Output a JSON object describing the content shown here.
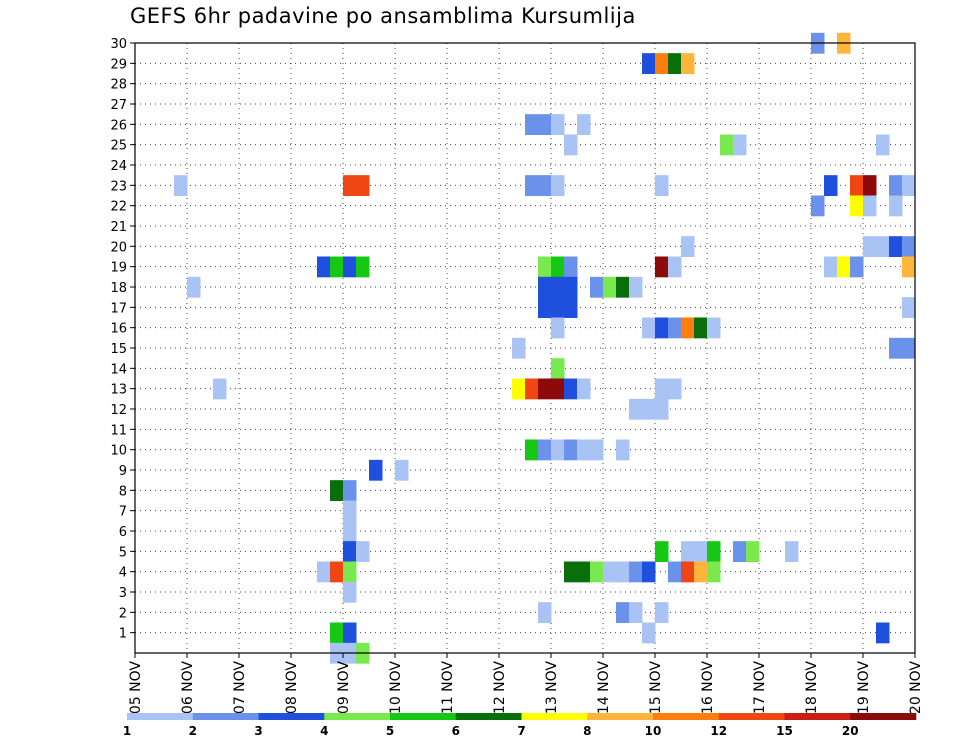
{
  "chart_data": {
    "type": "heatmap",
    "title": "GEFS 6hr padavine po ansamblima Kursumlija",
    "x_tick_labels": [
      "05 NOV",
      "06 NOV",
      "07 NOV",
      "08 NOV",
      "09 NOV",
      "10 NOV",
      "11 NOV",
      "12 NOV",
      "13 NOV",
      "14 NOV",
      "15 NOV",
      "16 NOV",
      "17 NOV",
      "18 NOV",
      "19 NOV",
      "20 NOV"
    ],
    "y_tick_labels": [
      "1",
      "2",
      "3",
      "4",
      "5",
      "6",
      "7",
      "8",
      "9",
      "10",
      "11",
      "12",
      "13",
      "14",
      "15",
      "16",
      "17",
      "18",
      "19",
      "20",
      "21",
      "22",
      "23",
      "24",
      "25",
      "26",
      "27",
      "28",
      "29",
      "30"
    ],
    "x_range_days": [
      0,
      15
    ],
    "y_range": [
      0,
      30
    ],
    "grid": true,
    "step_hours": 6,
    "colorbar": {
      "labels": [
        "1",
        "2",
        "3",
        "4",
        "5",
        "6",
        "7",
        "8",
        "10",
        "12",
        "15",
        "20"
      ],
      "colors": [
        "#aac3f5",
        "#6a92ea",
        "#1e4fdd",
        "#7ae84f",
        "#14c814",
        "#0a6e0a",
        "#ffff00",
        "#ffb43c",
        "#ff7d0a",
        "#f04614",
        "#cc1e14",
        "#8c0a0a"
      ]
    },
    "cells": [
      {
        "d": 0.75,
        "m": 23,
        "c": 0
      },
      {
        "d": 1.0,
        "m": 18,
        "c": 0
      },
      {
        "d": 1.5,
        "m": 13,
        "c": 0
      },
      {
        "d": 3.5,
        "m": 19,
        "c": 2
      },
      {
        "d": 3.75,
        "m": 19,
        "c": 4
      },
      {
        "d": 4.0,
        "m": 19,
        "c": 2
      },
      {
        "d": 4.25,
        "m": 19,
        "c": 4
      },
      {
        "d": 4.0,
        "m": 23,
        "c": 9
      },
      {
        "d": 4.25,
        "m": 23,
        "c": 9
      },
      {
        "d": 4.5,
        "m": 9,
        "c": 2
      },
      {
        "d": 5.0,
        "m": 9,
        "c": 0
      },
      {
        "d": 3.75,
        "m": 8,
        "c": 5
      },
      {
        "d": 4.0,
        "m": 8,
        "c": 1
      },
      {
        "d": 4.0,
        "m": 7,
        "c": 0
      },
      {
        "d": 4.0,
        "m": 6,
        "c": 0
      },
      {
        "d": 4.0,
        "m": 5,
        "c": 2
      },
      {
        "d": 4.25,
        "m": 5,
        "c": 0
      },
      {
        "d": 3.5,
        "m": 4,
        "c": 0
      },
      {
        "d": 3.75,
        "m": 4,
        "c": 9
      },
      {
        "d": 4.0,
        "m": 4,
        "c": 3
      },
      {
        "d": 4.0,
        "m": 3,
        "c": 0
      },
      {
        "d": 3.75,
        "m": 1,
        "c": 4
      },
      {
        "d": 4.0,
        "m": 1,
        "c": 2
      },
      {
        "d": 3.75,
        "m": 0,
        "c": 0
      },
      {
        "d": 4.0,
        "m": 0,
        "c": 0
      },
      {
        "d": 4.25,
        "m": 0,
        "c": 3
      },
      {
        "d": 7.5,
        "m": 26,
        "c": 1
      },
      {
        "d": 7.75,
        "m": 26,
        "c": 1
      },
      {
        "d": 8.0,
        "m": 26,
        "c": 0
      },
      {
        "d": 8.5,
        "m": 26,
        "c": 0
      },
      {
        "d": 8.25,
        "m": 25,
        "c": 0
      },
      {
        "d": 7.5,
        "m": 23,
        "c": 1
      },
      {
        "d": 7.75,
        "m": 23,
        "c": 1
      },
      {
        "d": 8.0,
        "m": 23,
        "c": 0
      },
      {
        "d": 7.75,
        "m": 19,
        "c": 3
      },
      {
        "d": 8.0,
        "m": 19,
        "c": 4
      },
      {
        "d": 8.25,
        "m": 19,
        "c": 1
      },
      {
        "d": 7.75,
        "m": 18,
        "c": 2
      },
      {
        "d": 8.0,
        "m": 18,
        "c": 2
      },
      {
        "d": 8.25,
        "m": 18,
        "c": 2
      },
      {
        "d": 8.75,
        "m": 18,
        "c": 1
      },
      {
        "d": 9.0,
        "m": 18,
        "c": 3
      },
      {
        "d": 9.25,
        "m": 18,
        "c": 5
      },
      {
        "d": 9.5,
        "m": 18,
        "c": 0
      },
      {
        "d": 7.75,
        "m": 17,
        "c": 2
      },
      {
        "d": 8.0,
        "m": 17,
        "c": 2
      },
      {
        "d": 8.25,
        "m": 17,
        "c": 2
      },
      {
        "d": 8.0,
        "m": 16,
        "c": 0
      },
      {
        "d": 7.25,
        "m": 15,
        "c": 0
      },
      {
        "d": 8.0,
        "m": 14,
        "c": 3
      },
      {
        "d": 7.25,
        "m": 13,
        "c": 6
      },
      {
        "d": 7.5,
        "m": 13,
        "c": 9
      },
      {
        "d": 7.75,
        "m": 13,
        "c": 11
      },
      {
        "d": 8.0,
        "m": 13,
        "c": 11
      },
      {
        "d": 8.25,
        "m": 13,
        "c": 2
      },
      {
        "d": 8.5,
        "m": 13,
        "c": 0
      },
      {
        "d": 7.5,
        "m": 10,
        "c": 4
      },
      {
        "d": 7.75,
        "m": 10,
        "c": 1
      },
      {
        "d": 8.0,
        "m": 10,
        "c": 0
      },
      {
        "d": 8.25,
        "m": 10,
        "c": 1
      },
      {
        "d": 8.5,
        "m": 10,
        "c": 0
      },
      {
        "d": 8.75,
        "m": 10,
        "c": 0
      },
      {
        "d": 9.25,
        "m": 10,
        "c": 0
      },
      {
        "d": 8.25,
        "m": 4,
        "c": 5
      },
      {
        "d": 8.5,
        "m": 4,
        "c": 5
      },
      {
        "d": 8.75,
        "m": 4,
        "c": 3
      },
      {
        "d": 9.0,
        "m": 4,
        "c": 0
      },
      {
        "d": 9.25,
        "m": 4,
        "c": 0
      },
      {
        "d": 9.5,
        "m": 4,
        "c": 1
      },
      {
        "d": 9.75,
        "m": 4,
        "c": 2
      },
      {
        "d": 7.75,
        "m": 2,
        "c": 0
      },
      {
        "d": 9.25,
        "m": 2,
        "c": 1
      },
      {
        "d": 9.5,
        "m": 2,
        "c": 0
      },
      {
        "d": 9.75,
        "m": 29,
        "c": 2
      },
      {
        "d": 10.0,
        "m": 29,
        "c": 8
      },
      {
        "d": 10.25,
        "m": 29,
        "c": 5
      },
      {
        "d": 10.5,
        "m": 29,
        "c": 7
      },
      {
        "d": 10.0,
        "m": 23,
        "c": 0
      },
      {
        "d": 10.0,
        "m": 19,
        "c": 11
      },
      {
        "d": 10.25,
        "m": 19,
        "c": 0
      },
      {
        "d": 10.5,
        "m": 20,
        "c": 0
      },
      {
        "d": 9.75,
        "m": 16,
        "c": 0
      },
      {
        "d": 10.0,
        "m": 16,
        "c": 2
      },
      {
        "d": 10.25,
        "m": 16,
        "c": 1
      },
      {
        "d": 10.5,
        "m": 16,
        "c": 8
      },
      {
        "d": 10.75,
        "m": 16,
        "c": 5
      },
      {
        "d": 11.0,
        "m": 16,
        "c": 0
      },
      {
        "d": 10.0,
        "m": 13,
        "c": 0
      },
      {
        "d": 10.25,
        "m": 13,
        "c": 0
      },
      {
        "d": 9.5,
        "m": 12,
        "c": 0
      },
      {
        "d": 9.75,
        "m": 12,
        "c": 0
      },
      {
        "d": 10.0,
        "m": 12,
        "c": 0
      },
      {
        "d": 10.0,
        "m": 5,
        "c": 4
      },
      {
        "d": 10.5,
        "m": 5,
        "c": 0
      },
      {
        "d": 10.75,
        "m": 5,
        "c": 0
      },
      {
        "d": 11.0,
        "m": 5,
        "c": 4
      },
      {
        "d": 11.5,
        "m": 5,
        "c": 1
      },
      {
        "d": 11.75,
        "m": 5,
        "c": 3
      },
      {
        "d": 12.5,
        "m": 5,
        "c": 0
      },
      {
        "d": 10.25,
        "m": 4,
        "c": 1
      },
      {
        "d": 10.5,
        "m": 4,
        "c": 9
      },
      {
        "d": 10.75,
        "m": 4,
        "c": 7
      },
      {
        "d": 11.0,
        "m": 4,
        "c": 3
      },
      {
        "d": 10.0,
        "m": 2,
        "c": 0
      },
      {
        "d": 9.75,
        "m": 1,
        "c": 0
      },
      {
        "d": 11.25,
        "m": 25,
        "c": 3
      },
      {
        "d": 11.5,
        "m": 25,
        "c": 0
      },
      {
        "d": 13.0,
        "m": 30,
        "c": 1
      },
      {
        "d": 13.5,
        "m": 30,
        "c": 7
      },
      {
        "d": 13.25,
        "m": 23,
        "c": 2
      },
      {
        "d": 13.75,
        "m": 23,
        "c": 9
      },
      {
        "d": 14.0,
        "m": 23,
        "c": 11
      },
      {
        "d": 14.5,
        "m": 23,
        "c": 1
      },
      {
        "d": 14.75,
        "m": 23,
        "c": 0
      },
      {
        "d": 13.0,
        "m": 22,
        "c": 1
      },
      {
        "d": 13.75,
        "m": 22,
        "c": 6
      },
      {
        "d": 14.0,
        "m": 22,
        "c": 0
      },
      {
        "d": 14.5,
        "m": 22,
        "c": 0
      },
      {
        "d": 14.0,
        "m": 20,
        "c": 0
      },
      {
        "d": 14.25,
        "m": 20,
        "c": 0
      },
      {
        "d": 14.5,
        "m": 20,
        "c": 2
      },
      {
        "d": 14.75,
        "m": 20,
        "c": 1
      },
      {
        "d": 13.25,
        "m": 19,
        "c": 0
      },
      {
        "d": 13.5,
        "m": 19,
        "c": 6
      },
      {
        "d": 13.75,
        "m": 19,
        "c": 1
      },
      {
        "d": 14.75,
        "m": 19,
        "c": 7
      },
      {
        "d": 14.75,
        "m": 17,
        "c": 0
      },
      {
        "d": 14.5,
        "m": 15,
        "c": 1
      },
      {
        "d": 14.75,
        "m": 15,
        "c": 1
      },
      {
        "d": 14.25,
        "m": 25,
        "c": 0
      },
      {
        "d": 14.25,
        "m": 1,
        "c": 2
      }
    ]
  }
}
